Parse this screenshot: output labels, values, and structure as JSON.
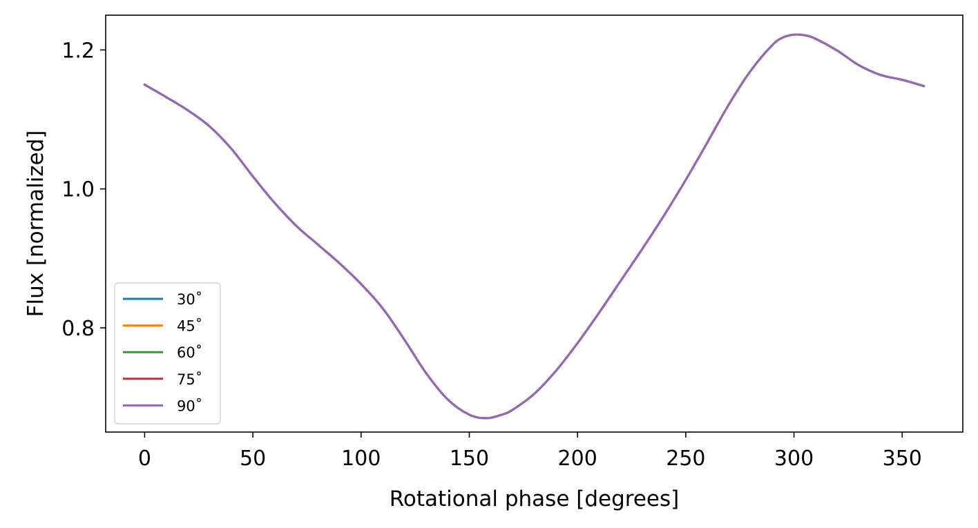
{
  "chart_data": {
    "type": "line",
    "xlabel": "Rotational phase [degrees]",
    "ylabel": "Flux [normalized]",
    "xlim": [
      -18,
      378
    ],
    "ylim": [
      0.65,
      1.25
    ],
    "xticks": [
      0,
      50,
      100,
      150,
      200,
      250,
      300,
      350
    ],
    "yticks": [
      0.8,
      1.0,
      1.2
    ],
    "xtick_labels": [
      "0",
      "50",
      "100",
      "150",
      "200",
      "250",
      "300",
      "350"
    ],
    "ytick_labels": [
      "0.8",
      "1.0",
      "1.2"
    ],
    "grid": false,
    "legend_position": "lower-left",
    "x": [
      0,
      10,
      20,
      30,
      40,
      50,
      60,
      70,
      80,
      90,
      100,
      110,
      120,
      130,
      140,
      150,
      158,
      165,
      170,
      180,
      190,
      200,
      210,
      220,
      230,
      240,
      250,
      260,
      270,
      280,
      290,
      295,
      300,
      305,
      310,
      320,
      330,
      340,
      350,
      360
    ],
    "series": [
      {
        "name": "30$^\\circ$",
        "label": "30˚",
        "color": "#1f77b4",
        "values": [
          1.15,
          1.132,
          1.113,
          1.09,
          1.058,
          1.018,
          0.98,
          0.947,
          0.92,
          0.893,
          0.863,
          0.828,
          0.783,
          0.735,
          0.697,
          0.675,
          0.67,
          0.675,
          0.682,
          0.705,
          0.738,
          0.778,
          0.822,
          0.868,
          0.914,
          0.962,
          1.013,
          1.067,
          1.122,
          1.17,
          1.207,
          1.218,
          1.222,
          1.221,
          1.216,
          1.199,
          1.178,
          1.164,
          1.157,
          1.148
        ]
      },
      {
        "name": "45$^\\circ$",
        "label": "45˚",
        "color": "#ff7f0e",
        "values": [
          1.15,
          1.132,
          1.113,
          1.09,
          1.058,
          1.018,
          0.98,
          0.947,
          0.92,
          0.893,
          0.863,
          0.828,
          0.783,
          0.735,
          0.697,
          0.675,
          0.67,
          0.675,
          0.682,
          0.705,
          0.738,
          0.778,
          0.822,
          0.868,
          0.914,
          0.962,
          1.013,
          1.067,
          1.122,
          1.17,
          1.207,
          1.218,
          1.222,
          1.221,
          1.216,
          1.199,
          1.178,
          1.164,
          1.157,
          1.148
        ]
      },
      {
        "name": "60$^\\circ$",
        "label": "60˚",
        "color": "#2ca02c",
        "values": [
          1.15,
          1.132,
          1.113,
          1.09,
          1.058,
          1.018,
          0.98,
          0.947,
          0.92,
          0.893,
          0.863,
          0.828,
          0.783,
          0.735,
          0.697,
          0.675,
          0.67,
          0.675,
          0.682,
          0.705,
          0.738,
          0.778,
          0.822,
          0.868,
          0.914,
          0.962,
          1.013,
          1.067,
          1.122,
          1.17,
          1.207,
          1.218,
          1.222,
          1.221,
          1.216,
          1.199,
          1.178,
          1.164,
          1.157,
          1.148
        ]
      },
      {
        "name": "75$^\\circ$",
        "label": "75˚",
        "color": "#d62728",
        "values": [
          1.15,
          1.132,
          1.113,
          1.09,
          1.058,
          1.018,
          0.98,
          0.947,
          0.92,
          0.893,
          0.863,
          0.828,
          0.783,
          0.735,
          0.697,
          0.675,
          0.67,
          0.675,
          0.682,
          0.705,
          0.738,
          0.778,
          0.822,
          0.868,
          0.914,
          0.962,
          1.013,
          1.067,
          1.122,
          1.17,
          1.207,
          1.218,
          1.222,
          1.221,
          1.216,
          1.199,
          1.178,
          1.164,
          1.157,
          1.148
        ]
      },
      {
        "name": "90$^\\circ$",
        "label": "90˚",
        "color": "#9467bd",
        "values": [
          1.15,
          1.132,
          1.113,
          1.09,
          1.058,
          1.018,
          0.98,
          0.947,
          0.92,
          0.893,
          0.863,
          0.828,
          0.783,
          0.735,
          0.697,
          0.675,
          0.67,
          0.675,
          0.682,
          0.705,
          0.738,
          0.778,
          0.822,
          0.868,
          0.914,
          0.962,
          1.013,
          1.067,
          1.122,
          1.17,
          1.207,
          1.218,
          1.222,
          1.221,
          1.216,
          1.199,
          1.178,
          1.164,
          1.157,
          1.148
        ]
      }
    ]
  }
}
